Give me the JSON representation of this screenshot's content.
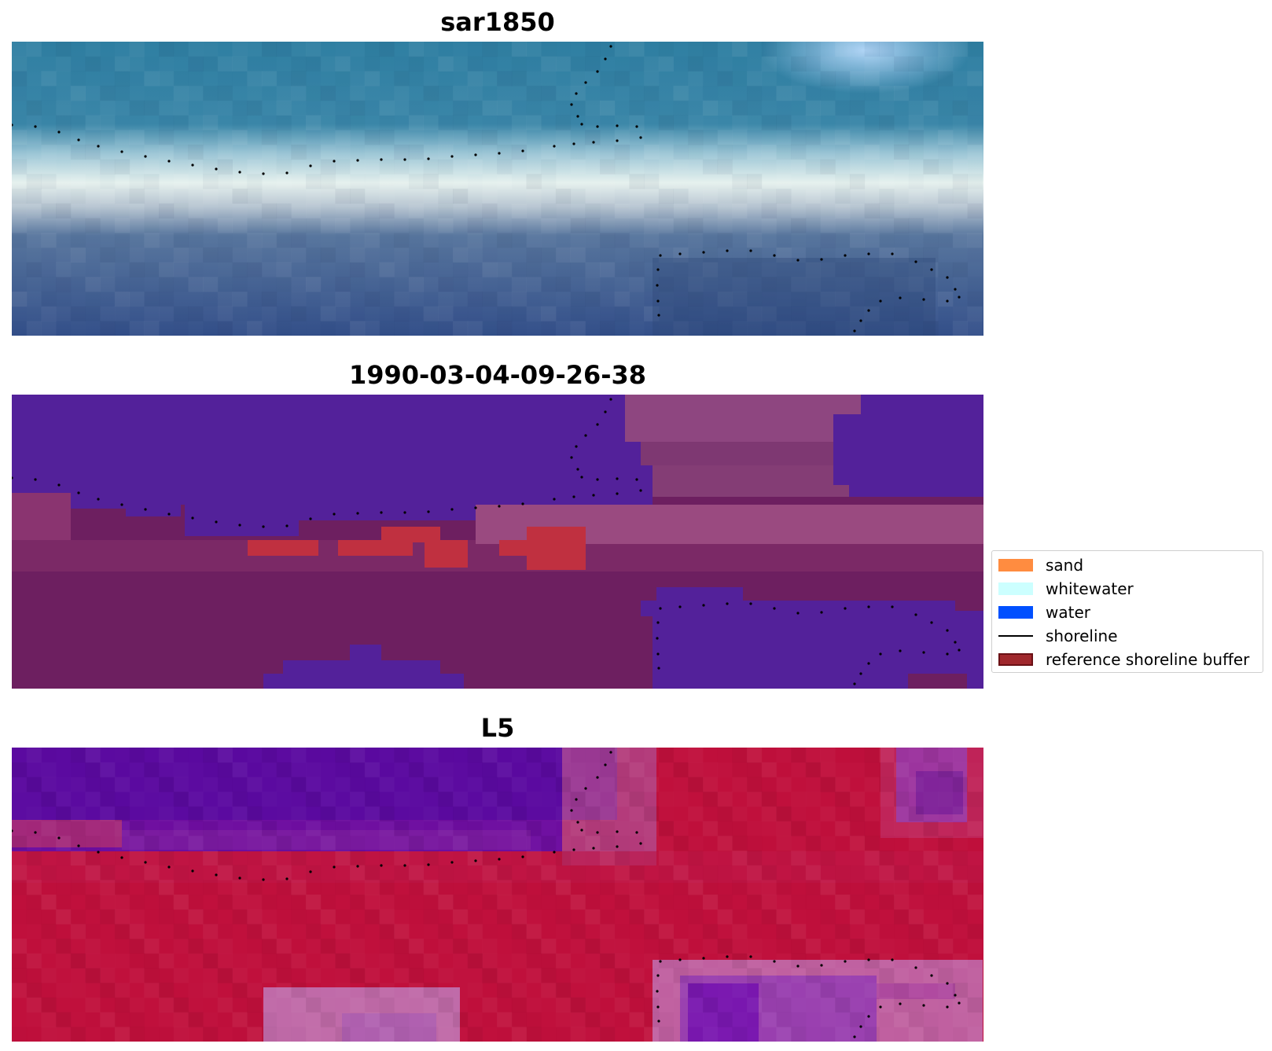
{
  "panels": [
    {
      "id": "sar",
      "title": "sar1850"
    },
    {
      "id": "classification",
      "title": "1990-03-04-09-26-38"
    },
    {
      "id": "index",
      "title": "L5"
    }
  ],
  "legend": {
    "items": [
      {
        "label": "sand",
        "kind": "patch",
        "color": "#ff8c40"
      },
      {
        "label": "whitewater",
        "kind": "patch",
        "color": "#ccffff"
      },
      {
        "label": "water",
        "kind": "patch",
        "color": "#0050ff"
      },
      {
        "label": "shoreline",
        "kind": "line",
        "color": "#000000"
      },
      {
        "label": "reference shoreline buffer",
        "kind": "patch",
        "color": "#a0282d"
      }
    ]
  },
  "colors": {
    "rgb_water": "#2f74a3",
    "rgb_foam": "#e8f0ee",
    "rgb_offshore": "#3b5a8a",
    "class_water": "#53219a",
    "class_land": "#6d1f60",
    "class_buffer": "#c03040",
    "index_low": "#5b0aa0",
    "index_high": "#c0103c"
  }
}
